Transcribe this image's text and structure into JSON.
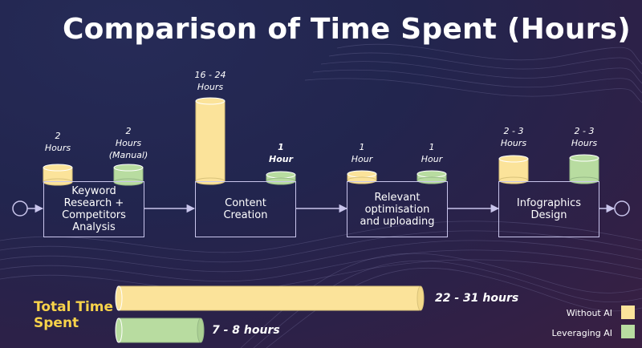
{
  "title": "Comparison of Time Spent (Hours)",
  "colors": {
    "without_ai": "#fbe39a",
    "leveraging_ai": "#b8dca0",
    "accent_text": "#f7d24a",
    "line": "#c9c5ec"
  },
  "steps": [
    {
      "name": "Keyword Research + Competitors Analysis",
      "lines": [
        "Keyword",
        "Research +",
        "Competitors",
        "Analysis"
      ],
      "without_ai_label": [
        "2",
        "Hours"
      ],
      "leveraging_ai_label": [
        "2",
        "Hours",
        "(Manual)"
      ],
      "without_ai_bold": false,
      "leveraging_ai_bold": false
    },
    {
      "name": "Content Creation",
      "lines": [
        "Content",
        "Creation"
      ],
      "without_ai_label": [
        "16 - 24",
        "Hours"
      ],
      "leveraging_ai_label": [
        "1",
        "Hour"
      ],
      "without_ai_bold": false,
      "leveraging_ai_bold": true
    },
    {
      "name": "Relevant optimisation and uploading",
      "lines": [
        "Relevant",
        "optimisation",
        "and uploading"
      ],
      "without_ai_label": [
        "1",
        "Hour"
      ],
      "leveraging_ai_label": [
        "1",
        "Hour"
      ],
      "without_ai_bold": false,
      "leveraging_ai_bold": false
    },
    {
      "name": "Infographics Design",
      "lines": [
        "Infographics",
        "Design"
      ],
      "without_ai_label": [
        "2 - 3",
        "Hours"
      ],
      "leveraging_ai_label": [
        "2 - 3",
        "Hours"
      ],
      "without_ai_bold": false,
      "leveraging_ai_bold": false
    }
  ],
  "total": {
    "title": "Total Time Spent",
    "without_ai": "22 - 31 hours",
    "leveraging_ai": "7 - 8 hours"
  },
  "legend": [
    {
      "label": "Without AI",
      "color": "#fbe39a"
    },
    {
      "label": "Leveraging AI",
      "color": "#b8dca0"
    }
  ]
}
